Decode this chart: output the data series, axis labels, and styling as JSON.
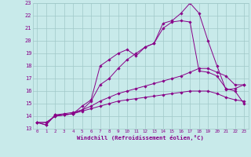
{
  "bg_color": "#c8eaea",
  "grid_color": "#a0c8c8",
  "line_color": "#880088",
  "marker_color": "#880088",
  "xlabel": "Windchill (Refroidissement éolien,°C)",
  "xlabel_color": "#880088",
  "ylim": [
    13,
    23
  ],
  "xlim": [
    -0.5,
    23.5
  ],
  "yticks": [
    13,
    14,
    15,
    16,
    17,
    18,
    19,
    20,
    21,
    22,
    23
  ],
  "xticks": [
    0,
    1,
    2,
    3,
    4,
    5,
    6,
    7,
    8,
    9,
    10,
    11,
    12,
    13,
    14,
    15,
    16,
    17,
    18,
    19,
    20,
    21,
    22,
    23
  ],
  "series": [
    [
      13.5,
      13.3,
      14.1,
      14.1,
      14.2,
      14.8,
      15.3,
      18.0,
      18.5,
      19.0,
      19.3,
      18.8,
      19.5,
      19.8,
      21.4,
      21.6,
      22.2,
      23.0,
      22.2,
      20.0,
      18.0,
      16.1,
      16.2,
      16.5
    ],
    [
      13.5,
      13.3,
      14.1,
      14.2,
      14.3,
      14.5,
      15.2,
      16.5,
      17.0,
      17.8,
      18.5,
      19.0,
      19.5,
      19.8,
      21.0,
      21.5,
      21.6,
      21.5,
      17.6,
      17.5,
      17.2,
      16.2,
      16.0,
      15.0
    ],
    [
      13.5,
      13.5,
      14.0,
      14.1,
      14.2,
      14.5,
      14.8,
      15.2,
      15.5,
      15.8,
      16.0,
      16.2,
      16.4,
      16.6,
      16.8,
      17.0,
      17.2,
      17.5,
      17.8,
      17.8,
      17.5,
      17.2,
      16.5,
      16.5
    ],
    [
      13.5,
      13.5,
      14.0,
      14.1,
      14.2,
      14.4,
      14.6,
      14.8,
      15.0,
      15.2,
      15.3,
      15.4,
      15.5,
      15.6,
      15.7,
      15.8,
      15.9,
      16.0,
      16.0,
      16.0,
      15.8,
      15.5,
      15.3,
      15.2
    ]
  ]
}
